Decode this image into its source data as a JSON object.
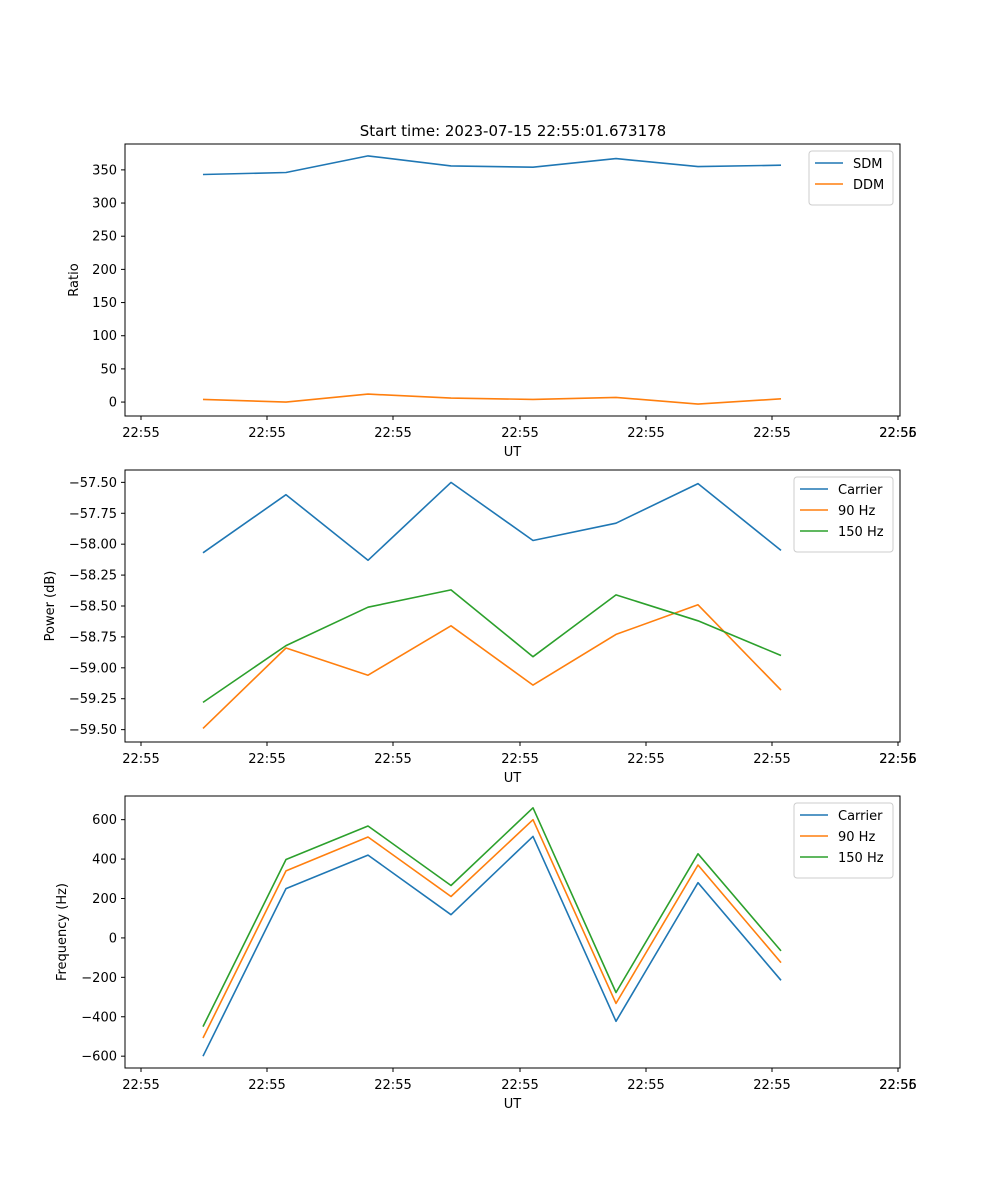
{
  "figure": {
    "title": "Start time: 2023-07-15 22:55:01.673178"
  },
  "chart_data": [
    {
      "type": "line",
      "xlabel": "UT",
      "ylabel": "Ratio",
      "x_tick_labels": [
        "22:55",
        "22:55",
        "22:55",
        "22:55",
        "22:55",
        "22:55",
        "22:55",
        "22:56"
      ],
      "y_ticks": [
        0,
        50,
        100,
        150,
        200,
        250,
        300,
        350
      ],
      "y_tick_labels": [
        "0",
        "50",
        "100",
        "150",
        "200",
        "250",
        "300",
        "350"
      ],
      "ylim": [
        -21,
        389
      ],
      "legend_position": "top-right",
      "grid": false,
      "series": [
        {
          "name": "SDM",
          "color": "#1f77b4",
          "values": [
            343,
            346,
            371,
            356,
            354,
            367,
            355,
            357
          ]
        },
        {
          "name": "DDM",
          "color": "#ff7f0e",
          "values": [
            4,
            0,
            12,
            6,
            4,
            7,
            -3,
            5
          ]
        }
      ]
    },
    {
      "type": "line",
      "xlabel": "UT",
      "ylabel": "Power (dB)",
      "x_tick_labels": [
        "22:55",
        "22:55",
        "22:55",
        "22:55",
        "22:55",
        "22:55",
        "22:55",
        "22:56"
      ],
      "y_ticks": [
        -59.5,
        -59.25,
        -59.0,
        -58.75,
        -58.5,
        -58.25,
        -58.0,
        -57.75,
        -57.5
      ],
      "y_tick_labels": [
        "−59.50",
        "−59.25",
        "−59.00",
        "−58.75",
        "−58.50",
        "−58.25",
        "−58.00",
        "−57.75",
        "−57.50"
      ],
      "ylim": [
        -59.6,
        -57.4
      ],
      "legend_position": "top-right",
      "grid": false,
      "series": [
        {
          "name": "Carrier",
          "color": "#1f77b4",
          "values": [
            -58.07,
            -57.6,
            -58.13,
            -57.5,
            -57.97,
            -57.83,
            -57.51,
            -58.05
          ]
        },
        {
          "name": "90 Hz",
          "color": "#ff7f0e",
          "values": [
            -59.49,
            -58.84,
            -59.06,
            -58.66,
            -59.14,
            -58.73,
            -58.49,
            -59.18
          ]
        },
        {
          "name": "150 Hz",
          "color": "#2ca02c",
          "values": [
            -59.28,
            -58.82,
            -58.51,
            -58.37,
            -58.91,
            -58.41,
            -58.62,
            -58.9
          ]
        }
      ]
    },
    {
      "type": "line",
      "xlabel": "UT",
      "ylabel": "Frequency (Hz)",
      "x_tick_labels": [
        "22:55",
        "22:55",
        "22:55",
        "22:55",
        "22:55",
        "22:55",
        "22:55",
        "22:56"
      ],
      "y_ticks": [
        -600,
        -400,
        -200,
        0,
        200,
        400,
        600
      ],
      "y_tick_labels": [
        "−600",
        "−400",
        "−200",
        "0",
        "200",
        "400",
        "600"
      ],
      "ylim": [
        -660,
        720
      ],
      "legend_position": "top-right",
      "grid": false,
      "series": [
        {
          "name": "Carrier",
          "color": "#1f77b4",
          "values": [
            -600,
            250,
            420,
            118,
            515,
            -423,
            280,
            -215
          ]
        },
        {
          "name": "90 Hz",
          "color": "#ff7f0e",
          "values": [
            -508,
            340,
            512,
            210,
            600,
            -332,
            370,
            -125
          ]
        },
        {
          "name": "150 Hz",
          "color": "#2ca02c",
          "values": [
            -450,
            398,
            568,
            266,
            660,
            -277,
            427,
            -66
          ]
        }
      ]
    }
  ]
}
